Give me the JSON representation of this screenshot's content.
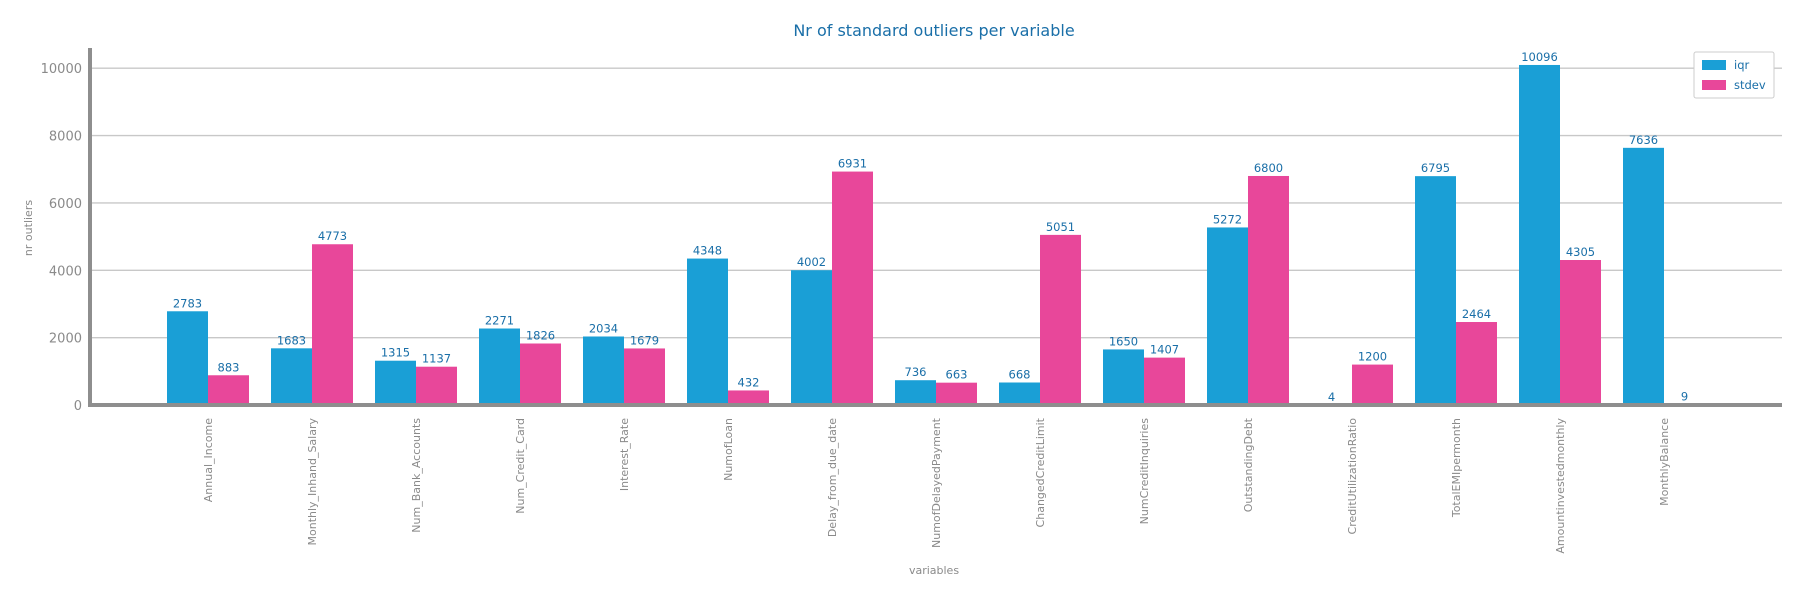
{
  "chart_data": {
    "type": "bar",
    "title": "Nr of standard outliers per variable",
    "xlabel": "variables",
    "ylabel": "nr outliers",
    "ylim": [
      0,
      10600
    ],
    "yticks": [
      0,
      2000,
      4000,
      6000,
      8000,
      10000
    ],
    "categories": [
      "Annual_Income",
      "Monthly_Inhand_Salary",
      "Num_Bank_Accounts",
      "Num_Credit_Card",
      "Interest_Rate",
      "NumofLoan",
      "Delay_from_due_date",
      "NumofDelayedPayment",
      "ChangedCreditLimit",
      "NumCreditInquiries",
      "OutstandingDebt",
      "CreditUtilizationRatio",
      "TotalEMIpermonth",
      "Amountinvestedmonthly",
      "MonthlyBalance"
    ],
    "series": [
      {
        "name": "iqr",
        "color": "#1a9fd6",
        "values": [
          2783,
          1683,
          1315,
          2271,
          2034,
          4348,
          4002,
          736,
          668,
          1650,
          5272,
          4,
          6795,
          10096,
          7636
        ]
      },
      {
        "name": "stdev",
        "color": "#e8479a",
        "values": [
          883,
          4773,
          1137,
          1826,
          1679,
          432,
          6931,
          663,
          5051,
          1407,
          6800,
          1200,
          2464,
          4305,
          9
        ]
      }
    ],
    "grid": true,
    "legend_position": "top-right"
  }
}
